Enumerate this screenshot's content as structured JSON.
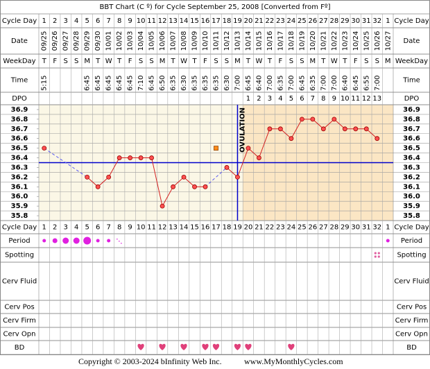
{
  "chart_data": {
    "type": "line",
    "title": "BBT Chart (C º) for Cycle September 25, 2008  [Converted from Fº]",
    "labels": {
      "cycle_day": "Cycle Day",
      "date": "Date",
      "weekday": "WeekDay",
      "time": "Time",
      "dpo": "DPO",
      "period": "Period",
      "spotting": "Spotting",
      "cerv_fluid": "Cerv Fluid",
      "cerv_pos": "Cerv Pos",
      "cerv_firm": "Cerv Firm",
      "cerv_opn": "Cerv Opn",
      "bd": "BD"
    },
    "categories": [
      "1",
      "2",
      "3",
      "4",
      "5",
      "6",
      "7",
      "8",
      "9",
      "10",
      "11",
      "12",
      "13",
      "14",
      "15",
      "16",
      "17",
      "18",
      "19",
      "20",
      "21",
      "22",
      "23",
      "24",
      "25",
      "26",
      "27",
      "28",
      "29",
      "30",
      "31",
      "32",
      "1"
    ],
    "dates": [
      "09/25",
      "09/26",
      "09/27",
      "09/28",
      "09/29",
      "09/30",
      "10/01",
      "10/02",
      "10/03",
      "10/04",
      "10/05",
      "10/06",
      "10/07",
      "10/08",
      "10/09",
      "10/10",
      "10/11",
      "10/12",
      "10/13",
      "10/14",
      "10/15",
      "10/16",
      "10/17",
      "10/18",
      "10/19",
      "10/20",
      "10/21",
      "10/22",
      "10/23",
      "10/24",
      "10/25",
      "10/26",
      "10/27"
    ],
    "weekdays": [
      "T",
      "F",
      "S",
      "S",
      "M",
      "T",
      "W",
      "T",
      "F",
      "S",
      "S",
      "M",
      "T",
      "W",
      "T",
      "F",
      "S",
      "S",
      "M",
      "T",
      "W",
      "T",
      "F",
      "S",
      "S",
      "M",
      "T",
      "W",
      "T",
      "F",
      "S",
      "S",
      "M"
    ],
    "times": [
      "5:15",
      null,
      null,
      null,
      "6:45",
      "6:45",
      "6:45",
      "6:45",
      "6:45",
      "7:10",
      "6:45",
      "6:50",
      "6:35",
      "6:30",
      "6:35",
      "6:35",
      "6:35",
      "6:30",
      "7:00",
      "6:45",
      "6:40",
      "7:00",
      "6:35",
      "7:00",
      "6:45",
      "6:35",
      "7:00",
      "7:00",
      "6:40",
      "6:45",
      "6:55",
      "7:00",
      null
    ],
    "dpo": [
      null,
      null,
      null,
      null,
      null,
      null,
      null,
      null,
      null,
      null,
      null,
      null,
      null,
      null,
      null,
      null,
      null,
      null,
      null,
      1,
      2,
      3,
      4,
      5,
      6,
      7,
      8,
      9,
      10,
      11,
      12,
      13,
      null
    ],
    "values": [
      36.5,
      null,
      null,
      null,
      36.2,
      36.1,
      36.2,
      36.4,
      36.4,
      36.4,
      36.4,
      35.9,
      36.1,
      36.2,
      36.1,
      36.1,
      null,
      36.3,
      36.2,
      36.5,
      36.4,
      36.7,
      36.7,
      36.6,
      36.8,
      36.8,
      36.7,
      36.8,
      36.7,
      36.7,
      36.7,
      36.6,
      null
    ],
    "color": "#d42020",
    "discarded": [
      null,
      null,
      null,
      null,
      null,
      null,
      null,
      null,
      null,
      null,
      null,
      null,
      null,
      null,
      null,
      null,
      36.5,
      null,
      null,
      null,
      null,
      null,
      null,
      null,
      null,
      null,
      null,
      null,
      null,
      null,
      null,
      null,
      null
    ],
    "discarded_color": "#ff8c1a",
    "coverline": 36.35,
    "coverline_color": "#0000cc",
    "ovulation_day": 19,
    "ovulation_label": "OVULATION",
    "ylim": [
      35.75,
      36.95
    ],
    "yticks": [
      36.9,
      36.8,
      36.7,
      36.6,
      36.5,
      36.4,
      36.3,
      36.2,
      36.1,
      {
        "value": 36,
        "label": "36.0"
      },
      35.9,
      35.8
    ],
    "period": [
      1,
      2,
      3,
      3,
      4,
      1,
      1,
      0.5,
      null,
      null,
      null,
      null,
      null,
      null,
      null,
      null,
      null,
      null,
      null,
      null,
      null,
      null,
      null,
      null,
      null,
      null,
      null,
      null,
      null,
      null,
      null,
      null,
      1
    ],
    "period_color": "#e020e0",
    "spotting": [
      null,
      null,
      null,
      null,
      null,
      null,
      null,
      null,
      null,
      null,
      null,
      null,
      null,
      null,
      null,
      null,
      null,
      null,
      null,
      null,
      null,
      null,
      null,
      null,
      null,
      null,
      null,
      null,
      null,
      null,
      null,
      1,
      null
    ],
    "spotting_color": "#e060a0",
    "bd": [
      null,
      null,
      null,
      null,
      null,
      null,
      null,
      null,
      null,
      1,
      null,
      1,
      null,
      1,
      null,
      1,
      1,
      null,
      1,
      1,
      null,
      null,
      null,
      1,
      null,
      null,
      null,
      null,
      null,
      null,
      null,
      null,
      null
    ],
    "bd_color": "#e0407a",
    "copyright": "Copyright © 2003-2024 bInfinity Web Inc.",
    "site": "www.MyMonthlyCycles.com"
  }
}
